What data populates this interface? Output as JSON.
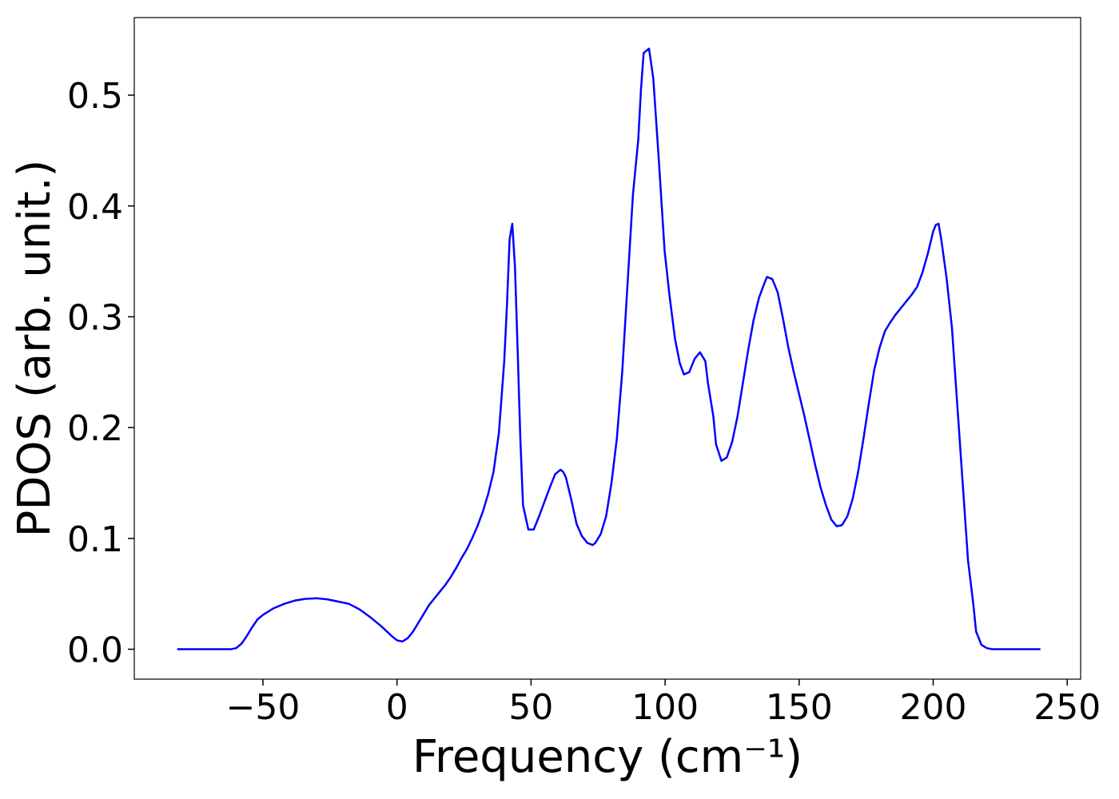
{
  "chart_data": {
    "type": "line",
    "xlabel": "Frequency (cm⁻¹)",
    "ylabel": "PDOS (arb. unit.)",
    "x": [
      -82,
      -70,
      -62,
      -60,
      -58,
      -56,
      -54,
      -52,
      -50,
      -46,
      -42,
      -38,
      -34,
      -30,
      -26,
      -22,
      -18,
      -14,
      -10,
      -6,
      -2,
      0,
      2,
      4,
      6,
      8,
      10,
      12,
      14,
      16,
      18,
      20,
      22,
      24,
      26,
      28,
      30,
      32,
      34,
      36,
      38,
      40,
      41,
      42,
      43,
      44,
      45,
      46,
      47,
      49,
      51,
      53,
      55,
      57,
      59,
      61,
      62,
      63,
      65,
      67,
      69,
      71,
      73,
      74,
      76,
      78,
      80,
      82,
      84,
      86,
      88,
      90,
      91,
      92,
      94,
      95.6,
      97.7,
      99.8,
      101.6,
      103.7,
      105.5,
      107,
      109,
      111,
      113,
      115,
      116,
      118,
      119,
      121,
      123,
      125,
      127,
      129,
      131,
      133,
      135,
      137,
      138,
      140,
      142,
      144,
      146,
      148,
      150,
      152,
      154,
      156,
      158,
      160,
      162,
      164,
      166,
      168,
      170,
      172,
      174,
      176,
      178,
      180,
      182,
      184,
      186,
      188,
      190,
      192,
      194,
      196,
      198,
      200,
      201,
      202,
      203,
      205,
      207,
      209,
      211,
      213,
      215,
      216,
      218,
      220,
      222,
      240
    ],
    "series": [
      {
        "name": "PDOS",
        "color": "#0000ff",
        "values": [
          0,
          0,
          0,
          0.001,
          0.005,
          0.012,
          0.02,
          0.027,
          0.031,
          0.037,
          0.041,
          0.044,
          0.0455,
          0.046,
          0.045,
          0.043,
          0.041,
          0.036,
          0.029,
          0.021,
          0.012,
          0.008,
          0.007,
          0.01,
          0.016,
          0.024,
          0.032,
          0.04,
          0.046,
          0.052,
          0.058,
          0.065,
          0.073,
          0.082,
          0.09,
          0.1,
          0.111,
          0.124,
          0.14,
          0.16,
          0.195,
          0.26,
          0.31,
          0.37,
          0.384,
          0.345,
          0.27,
          0.19,
          0.13,
          0.108,
          0.108,
          0.12,
          0.133,
          0.146,
          0.158,
          0.162,
          0.16,
          0.155,
          0.135,
          0.113,
          0.102,
          0.096,
          0.094,
          0.096,
          0.104,
          0.12,
          0.15,
          0.19,
          0.25,
          0.33,
          0.41,
          0.46,
          0.505,
          0.538,
          0.542,
          0.515,
          0.44,
          0.36,
          0.32,
          0.28,
          0.258,
          0.248,
          0.25,
          0.262,
          0.268,
          0.26,
          0.24,
          0.21,
          0.185,
          0.17,
          0.173,
          0.187,
          0.21,
          0.24,
          0.27,
          0.297,
          0.317,
          0.33,
          0.336,
          0.334,
          0.322,
          0.298,
          0.272,
          0.25,
          0.23,
          0.21,
          0.188,
          0.166,
          0.146,
          0.13,
          0.117,
          0.111,
          0.112,
          0.12,
          0.136,
          0.16,
          0.19,
          0.222,
          0.252,
          0.272,
          0.287,
          0.295,
          0.302,
          0.308,
          0.314,
          0.32,
          0.327,
          0.34,
          0.357,
          0.377,
          0.383,
          0.384,
          0.37,
          0.335,
          0.29,
          0.22,
          0.15,
          0.08,
          0.04,
          0.016,
          0.004,
          0.001,
          0,
          0
        ]
      }
    ],
    "xlim": [
      -98,
      255
    ],
    "xticks": [
      {
        "value": -50,
        "label": "−50"
      },
      0,
      50,
      100,
      150,
      200,
      250
    ],
    "ylim": [
      -0.027,
      0.57
    ],
    "yticks": [
      {
        "value": 0,
        "label": "0.0"
      },
      0.1,
      0.2,
      0.3,
      0.4,
      0.5
    ]
  }
}
